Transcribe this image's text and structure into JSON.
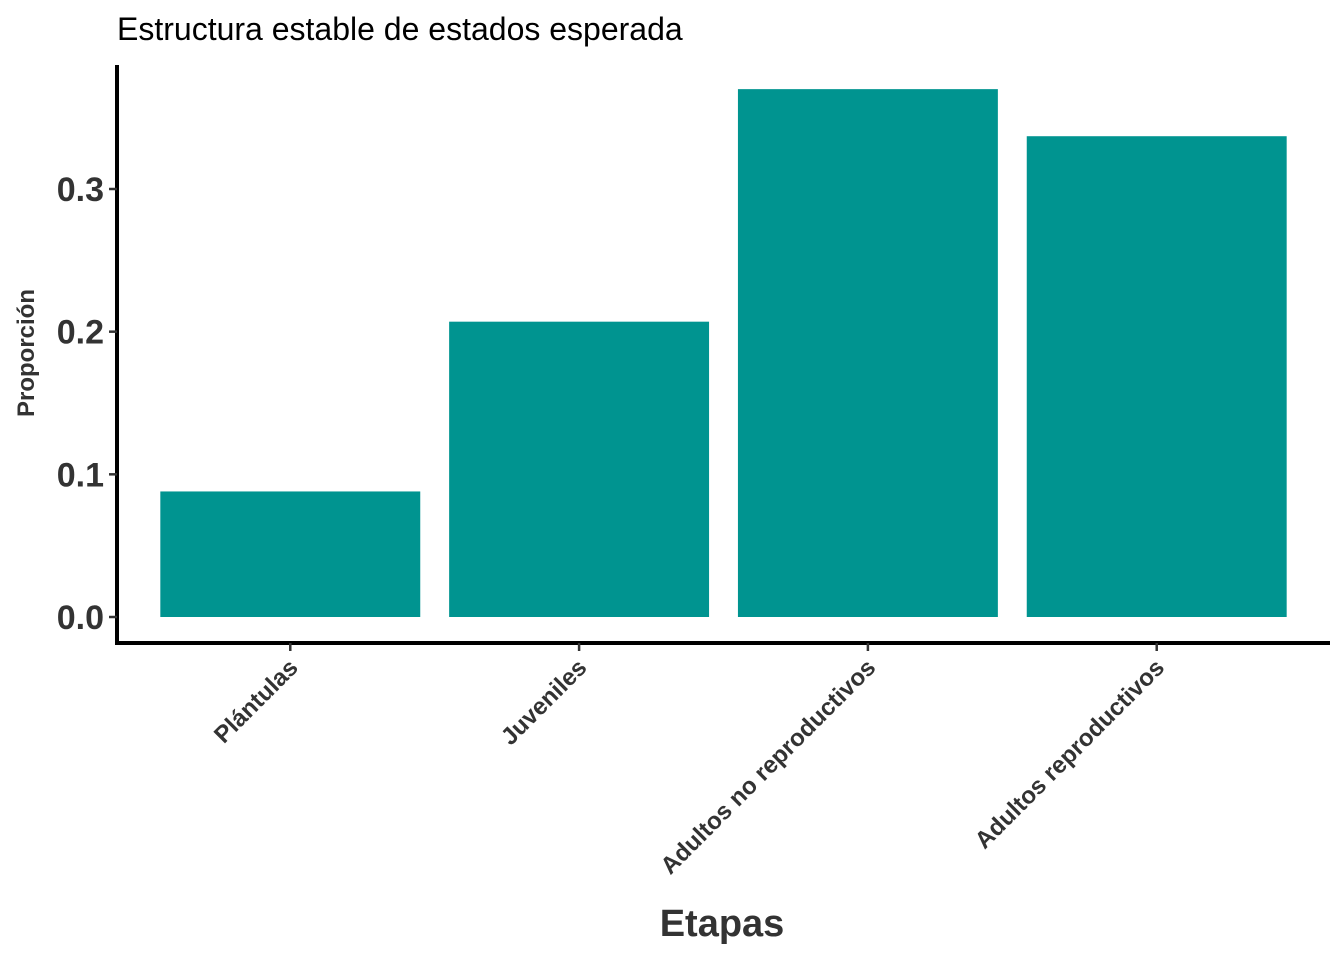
{
  "chart_data": {
    "type": "bar",
    "title": "Estructura estable de estados esperada",
    "xlabel": "Etapas",
    "ylabel": "Proporción",
    "categories": [
      "Plántulas",
      "Juveniles",
      "Adultos no reproductivos",
      "Adultos reproductivos"
    ],
    "values": [
      0.088,
      0.207,
      0.37,
      0.337
    ],
    "ylim": [
      -0.018,
      0.388
    ],
    "yticks": [
      0.0,
      0.1,
      0.2,
      0.3
    ],
    "ytick_labels": [
      "0.0",
      "0.1",
      "0.2",
      "0.3"
    ],
    "grid": false,
    "bar_color": "#009490",
    "axis_color": "#000000"
  }
}
